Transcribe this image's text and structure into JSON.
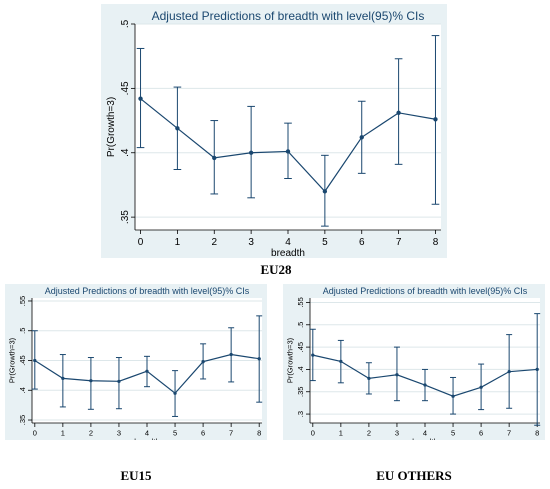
{
  "chart_data": [
    {
      "type": "line",
      "title": "Adjusted Predictions of breadth with level(95)% CIs",
      "xlabel": "breadth",
      "ylabel": "Pr(Growth=3)",
      "x": [
        0,
        1,
        2,
        3,
        4,
        5,
        6,
        7,
        8
      ],
      "xticks": [
        "0",
        "1",
        "2",
        "3",
        "4",
        "5",
        "6",
        "7",
        "8"
      ],
      "ylim": [
        0.34,
        0.5
      ],
      "yticks": [
        0.35,
        0.4,
        0.45,
        0.5
      ],
      "yticklabels": [
        ".35",
        ".4",
        ".45",
        ".5"
      ],
      "grid": true,
      "caption": "EU28",
      "series": [
        {
          "values": [
            0.442,
            0.419,
            0.396,
            0.4,
            0.401,
            0.37,
            0.412,
            0.431,
            0.426
          ],
          "lower": [
            0.404,
            0.387,
            0.368,
            0.365,
            0.38,
            0.343,
            0.384,
            0.391,
            0.36
          ],
          "upper": [
            0.481,
            0.451,
            0.425,
            0.436,
            0.423,
            0.398,
            0.44,
            0.473,
            0.491
          ]
        }
      ]
    },
    {
      "type": "line",
      "title": "Adjusted Predictions of breadth with level(95)% CIs",
      "xlabel": "breadth",
      "ylabel": "Pr(Growth=3)",
      "x": [
        0,
        1,
        2,
        3,
        4,
        5,
        6,
        7,
        8
      ],
      "xticks": [
        "0",
        "1",
        "2",
        "3",
        "4",
        "5",
        "6",
        "7",
        "8"
      ],
      "ylim": [
        0.345,
        0.555
      ],
      "yticks": [
        0.35,
        0.4,
        0.45,
        0.5,
        0.55
      ],
      "yticklabels": [
        ".35",
        ".4",
        ".45",
        ".5",
        ".55"
      ],
      "grid": true,
      "caption": "EU15",
      "series": [
        {
          "values": [
            0.45,
            0.42,
            0.416,
            0.415,
            0.432,
            0.395,
            0.448,
            0.46,
            0.453
          ],
          "lower": [
            0.402,
            0.372,
            0.368,
            0.369,
            0.406,
            0.356,
            0.419,
            0.414,
            0.38
          ],
          "upper": [
            0.5,
            0.46,
            0.455,
            0.455,
            0.457,
            0.433,
            0.478,
            0.505,
            0.525
          ]
        }
      ]
    },
    {
      "type": "line",
      "title": "Adjusted Predictions of breadth with level(95)% CIs",
      "xlabel": "breadth",
      "ylabel": "Pr(Growth=3)",
      "x": [
        0,
        1,
        2,
        3,
        4,
        5,
        6,
        7,
        8
      ],
      "xticks": [
        "0",
        "1",
        "2",
        "3",
        "4",
        "5",
        "6",
        "7",
        "8"
      ],
      "ylim": [
        0.28,
        0.56
      ],
      "yticks": [
        0.3,
        0.35,
        0.4,
        0.45,
        0.5,
        0.55
      ],
      "yticklabels": [
        ".3",
        ".35",
        ".4",
        ".45",
        ".5",
        ".55"
      ],
      "grid": true,
      "caption": "EU OTHERS",
      "series": [
        {
          "values": [
            0.432,
            0.418,
            0.38,
            0.388,
            0.365,
            0.34,
            0.36,
            0.395,
            0.4
          ],
          "lower": [
            0.375,
            0.37,
            0.345,
            0.33,
            0.33,
            0.3,
            0.31,
            0.313,
            0.275
          ],
          "upper": [
            0.49,
            0.465,
            0.415,
            0.45,
            0.4,
            0.382,
            0.412,
            0.478,
            0.525
          ]
        }
      ]
    }
  ]
}
